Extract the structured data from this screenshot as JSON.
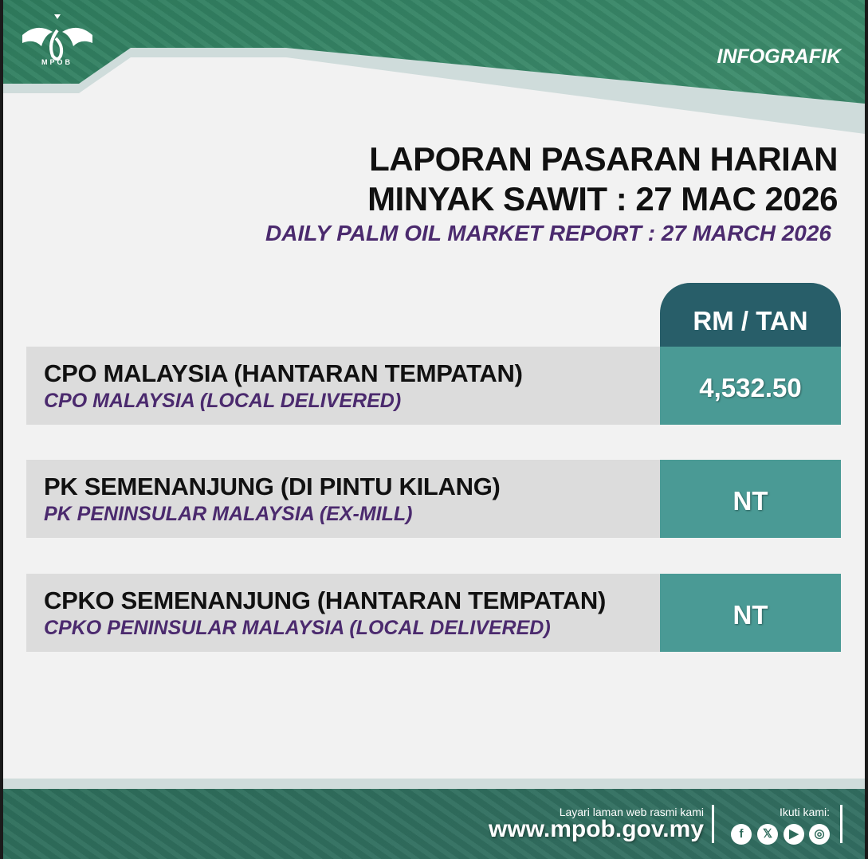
{
  "brand": {
    "logo_text": "MPOB",
    "tag": "INFOGRAFIK"
  },
  "title": {
    "line1": "LAPORAN PASARAN HARIAN",
    "line2": "MINYAK SAWIT : 27 MAC 2026",
    "english": "DAILY PALM OIL MARKET REPORT : 27 MARCH 2026"
  },
  "table": {
    "unit_header": "RM / TAN",
    "rows": [
      {
        "malay": "CPO MALAYSIA (HANTARAN TEMPATAN)",
        "english": "CPO MALAYSIA (LOCAL DELIVERED)",
        "value": "4,532.50"
      },
      {
        "malay": "PK SEMENANJUNG (DI PINTU KILANG)",
        "english": "PK PENINSULAR MALAYSIA (EX-MILL)",
        "value": "NT"
      },
      {
        "malay": "CPKO SEMENANJUNG (HANTARAN TEMPATAN)",
        "english": "CPKO PENINSULAR MALAYSIA (LOCAL DELIVERED)",
        "value": "NT"
      }
    ]
  },
  "footer": {
    "visit_text": "Layari laman web rasmi kami",
    "website": "www.mpob.gov.my",
    "follow_text": "Ikuti kami:",
    "social": [
      "facebook-icon",
      "x-icon",
      "youtube-icon",
      "instagram-icon"
    ]
  },
  "colors": {
    "green": "#2f7d5f",
    "value_teal": "#4a9a95",
    "header_teal": "#285e69",
    "purple": "#4b2a6e"
  }
}
